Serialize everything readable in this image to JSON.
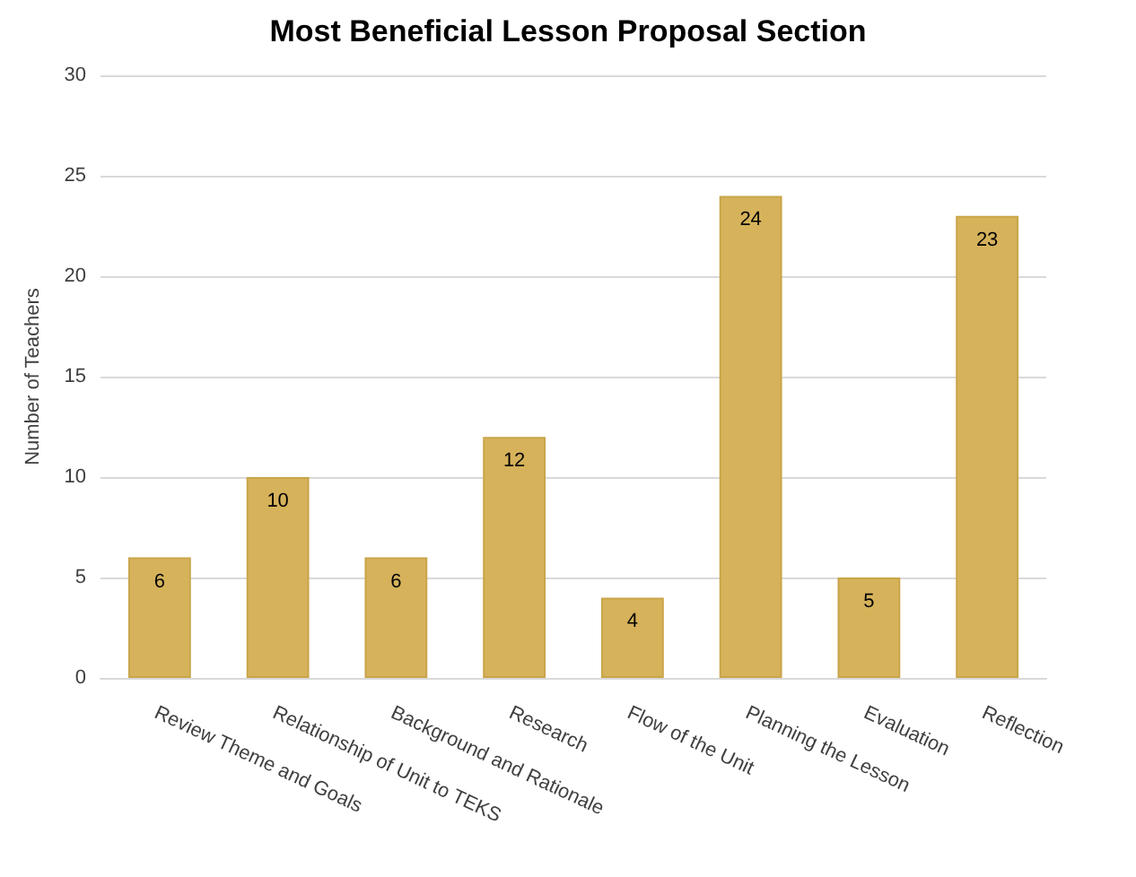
{
  "chart_data": {
    "type": "bar",
    "title": "Most Beneficial Lesson Proposal Section",
    "ylabel": "Number of Teachers",
    "categories": [
      "Review Theme and Goals",
      "Relationship of Unit to TEKS",
      "Background and Rationale",
      "Research",
      "Flow of the Unit",
      "Planning the Lesson",
      "Evaluation",
      "Reflection"
    ],
    "values": [
      6,
      10,
      6,
      12,
      4,
      24,
      5,
      23
    ],
    "color": "#d6b25b",
    "ylim": [
      0,
      30
    ],
    "yticks": [
      0,
      5,
      10,
      15,
      20,
      25,
      30
    ],
    "grid": "y",
    "data_labels": true
  }
}
